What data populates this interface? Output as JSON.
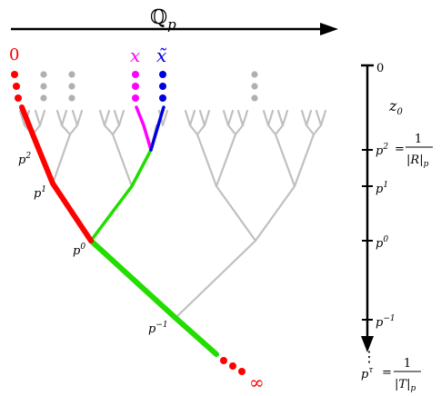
{
  "axis_top": {
    "label": "ℚ",
    "sub": "p"
  },
  "top_labels": {
    "zero": "0",
    "x": "x",
    "xtilde": "x̃"
  },
  "tree_labels": {
    "p2": {
      "base": "p",
      "exp": "2"
    },
    "p1": {
      "base": "p",
      "exp": "1"
    },
    "p0": {
      "base": "p",
      "exp": "0"
    },
    "pm1": {
      "base": "p",
      "exp": "−1"
    },
    "infinity": "∞"
  },
  "scale": {
    "zero": "0",
    "z0": {
      "base": "z",
      "sub": "0"
    },
    "p2": {
      "base": "p",
      "exp": "2",
      "eq": "=",
      "num": "1",
      "den_left": "|",
      "den": "R",
      "den_right": "|",
      "den_sub": "p"
    },
    "p1": {
      "base": "p",
      "exp": "1"
    },
    "p0": {
      "base": "p",
      "exp": "0"
    },
    "pm1": {
      "base": "p",
      "exp": "−1"
    },
    "dots": "⋮",
    "ptau": {
      "base": "p",
      "exp": "τ",
      "eq": "=",
      "num": "1",
      "den_left": "|",
      "den": "T",
      "den_right": "|",
      "den_sub": "p"
    }
  },
  "colors": {
    "red": "#ff0000",
    "magenta": "#ff00ff",
    "blue": "#0000dd",
    "green": "#22dd00",
    "gray": "#c0c0c0",
    "dot_gray": "#b0b0b0",
    "black": "#000000"
  }
}
